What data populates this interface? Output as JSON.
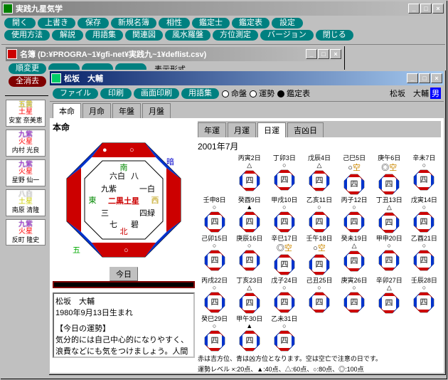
{
  "app": {
    "title": "実践九星気学",
    "mainButtons1": [
      "開く",
      "上書き",
      "保存",
      "新規名簿",
      "相性",
      "鑑定士",
      "鑑定表",
      "設定"
    ],
    "mainButtons2": [
      "使用方法",
      "解説",
      "用語集",
      "関連図",
      "風水羅盤",
      "方位測定",
      "バージョン",
      "閉じる"
    ]
  },
  "roster": {
    "title": "名簿  (D:¥PROGRA~1¥gfi-net¥実践九~1¥deflist.csv)",
    "btns1": [
      "順変更",
      "",
      "",
      ""
    ],
    "label1": "表示形式",
    "btns2": [
      "全消去",
      "",
      "",
      ""
    ]
  },
  "people": [
    {
      "star": "五黄\n土星",
      "name": "安室 奈美恵",
      "c1": "#ffee44",
      "c2": "#ff0000"
    },
    {
      "star": "九紫\n火星",
      "name": "内村 光良",
      "c1": "#c040ff",
      "c2": "#ff0000"
    },
    {
      "star": "九紫\n火星",
      "name": "星野 仙一",
      "c1": "#c040ff",
      "c2": "#ff0000"
    },
    {
      "star": "八白\n土星",
      "name": "南原 清隆",
      "c1": "#ffffff",
      "c2": "#cccc00"
    },
    {
      "star": "九紫\n火星",
      "name": "反町 隆史",
      "c1": "#c040ff",
      "c2": "#ff0000"
    }
  ],
  "detail": {
    "title": "松坂　大輔",
    "toolbar": [
      "ファイル",
      "印刷",
      "画面印刷",
      "用語集"
    ],
    "radios": [
      "命盤",
      "運勢",
      "鑑定表"
    ],
    "radioSelected": 2,
    "personName": "松坂　大輔",
    "sex": "男",
    "leftTabs": [
      "本命",
      "月命",
      "年盤",
      "月盤"
    ],
    "rightTabs": [
      "年運",
      "月運",
      "日運",
      "吉凶日"
    ],
    "rightActive": 2,
    "honmei": "本命",
    "centerStar": "二黒土星",
    "dirs": {
      "n": "北",
      "s": "南",
      "e": "東",
      "w": "西"
    },
    "nums": [
      "一白",
      "六白",
      "八",
      "三",
      "九紫",
      "七",
      "五",
      "四緑",
      "碧"
    ],
    "todayBtn": "今日",
    "fortuneName": "松坂　大輔",
    "fortuneBirth": "1980年9月13日生まれ",
    "fortuneHdr": "【今日の運勢】",
    "fortuneBody": "気分的には自己中心的になりやすく、浪費などにも気をつけましょう。人間関係には特に注意。",
    "monthTitle": "2001年7月",
    "days": [
      {
        "l": "丙寅2日",
        "m": "△"
      },
      {
        "l": "丁卯3日",
        "m": "○"
      },
      {
        "l": "戊辰4日",
        "m": "△"
      },
      {
        "l": "己巳5日",
        "m": "○空"
      },
      {
        "l": "庚午6日",
        "m": "◎空"
      },
      {
        "l": "辛未7日",
        "m": "○"
      },
      {
        "l": "壬申8日",
        "m": "○"
      },
      {
        "l": "癸酉9日",
        "m": "▲"
      },
      {
        "l": "甲戌10日",
        "m": "○"
      },
      {
        "l": "乙亥11日",
        "m": "○"
      },
      {
        "l": "丙子12日",
        "m": "○"
      },
      {
        "l": "丁丑13日",
        "m": "△"
      },
      {
        "l": "戊寅14日",
        "m": "○"
      },
      {
        "l": "己卯15日",
        "m": "○"
      },
      {
        "l": "庚辰16日",
        "m": "○"
      },
      {
        "l": "辛巳17日",
        "m": "◎空"
      },
      {
        "l": "壬午18日",
        "m": "○空"
      },
      {
        "l": "癸未19日",
        "m": "△"
      },
      {
        "l": "甲申20日",
        "m": "○"
      },
      {
        "l": "乙酉21日",
        "m": "○"
      },
      {
        "l": "丙戌22日",
        "m": "○"
      },
      {
        "l": "丁亥23日",
        "m": "△"
      },
      {
        "l": "戊子24日",
        "m": "○"
      },
      {
        "l": "己丑25日",
        "m": "○"
      },
      {
        "l": "庚寅26日",
        "m": "○"
      },
      {
        "l": "辛卯27日",
        "m": "△"
      },
      {
        "l": "壬辰28日",
        "m": "○"
      },
      {
        "l": "癸巳29日",
        "m": "○"
      },
      {
        "l": "甲午30日",
        "m": "▲"
      },
      {
        "l": "乙未31日",
        "m": "○"
      }
    ],
    "legend1": "赤は吉方位、青は凶方位となります。空は空亡で注意の日です。",
    "legend2": "運勢レベル  ×:20点、▲:40点、△:60点、○:80点、◎:100点",
    "colors": {
      "blue": "#0033cc",
      "red": "#cc0000",
      "white": "#ffffff"
    }
  }
}
